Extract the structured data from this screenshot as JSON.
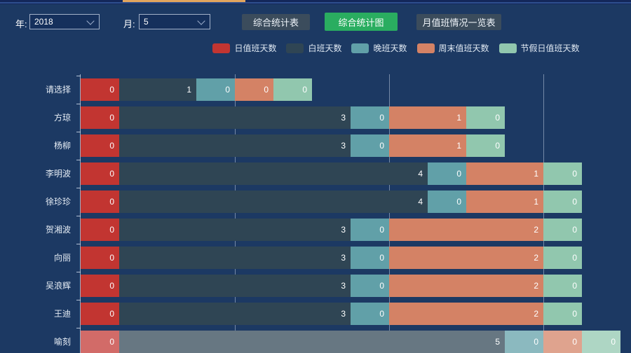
{
  "page": {
    "background_color": "#1c3963",
    "tab_accent_color": "#e2a55e"
  },
  "toolbar": {
    "year_label": "年:",
    "year_value": "2018",
    "month_label": "月:",
    "month_value": "5",
    "buttons": [
      {
        "label": "综合统计表",
        "style": "dark"
      },
      {
        "label": "综合统计图",
        "style": "green",
        "active": true
      },
      {
        "label": "月值班情况一览表",
        "style": "dark"
      }
    ],
    "active_button_color": "#2aad60",
    "inactive_button_color": "#3b4c5c"
  },
  "chart_data": {
    "type": "bar",
    "orientation": "horizontal",
    "stacked": true,
    "legend_position": "top",
    "grid_on": true,
    "xlim": [
      0,
      7
    ],
    "gridlines_at": [
      2,
      4,
      6
    ],
    "zero_value_min_units": 0.5,
    "categories": [
      "请选择",
      "方琼",
      "杨柳",
      "李明波",
      "徐珍珍",
      "贺湘波",
      "向丽",
      "吴浪辉",
      "王迪",
      "喻刻"
    ],
    "series": [
      {
        "name": "日值班天数",
        "key": "daily-duty-days",
        "color": "#c23531",
        "values": [
          0,
          0,
          0,
          0,
          0,
          0,
          0,
          0,
          0,
          0
        ]
      },
      {
        "name": "白班天数",
        "key": "day-shift-days",
        "color": "#2f4554",
        "values": [
          1,
          3,
          3,
          4,
          4,
          3,
          3,
          3,
          3,
          5
        ]
      },
      {
        "name": "晚班天数",
        "key": "night-shift-days",
        "color": "#61a0a8",
        "values": [
          0,
          0,
          0,
          0,
          0,
          0,
          0,
          0,
          0,
          0
        ]
      },
      {
        "name": "周末值班天数",
        "key": "weekend-duty-days",
        "color": "#d48265",
        "values": [
          0,
          1,
          1,
          1,
          1,
          2,
          2,
          2,
          2,
          0
        ]
      },
      {
        "name": "节假日值班天数",
        "key": "holiday-duty-days",
        "color": "#91c7ae",
        "values": [
          0,
          0,
          0,
          0,
          0,
          0,
          0,
          0,
          0,
          0
        ]
      }
    ],
    "highlighted_category": "喻刻"
  }
}
